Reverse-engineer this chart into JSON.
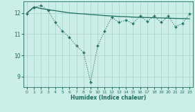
{
  "xlabel": "Humidex (Indice chaleur)",
  "bg_color": "#cceee8",
  "grid_color": "#aad4cc",
  "line_color": "#1a6b5a",
  "xlim": [
    -0.5,
    23.5
  ],
  "ylim": [
    8.5,
    12.55
  ],
  "yticks": [
    9,
    10,
    11,
    12
  ],
  "xticks": [
    0,
    1,
    2,
    3,
    4,
    5,
    6,
    7,
    8,
    9,
    10,
    11,
    12,
    13,
    14,
    15,
    16,
    17,
    18,
    19,
    20,
    21,
    22,
    23
  ],
  "series1_x": [
    0,
    1,
    2,
    3,
    4,
    5,
    6,
    7,
    8,
    9,
    10,
    11,
    12,
    13,
    14,
    15,
    16,
    17,
    18,
    19,
    20,
    21,
    22,
    23
  ],
  "series1_y": [
    11.95,
    12.25,
    12.35,
    12.1,
    11.55,
    11.15,
    10.85,
    10.45,
    10.15,
    8.75,
    10.45,
    11.15,
    11.8,
    11.55,
    11.65,
    11.5,
    11.85,
    11.6,
    11.85,
    11.55,
    11.85,
    11.35,
    11.5,
    11.95
  ],
  "series2_x": [
    0,
    1,
    2,
    3,
    4,
    5,
    6,
    7,
    8,
    9,
    10,
    11,
    12,
    13,
    14,
    15,
    16,
    17,
    18,
    19,
    20,
    21,
    22,
    23
  ],
  "series2_y": [
    12.0,
    12.28,
    12.2,
    12.15,
    12.1,
    12.05,
    12.0,
    11.97,
    11.95,
    11.92,
    11.9,
    11.87,
    11.85,
    11.83,
    11.82,
    11.8,
    11.79,
    11.78,
    11.77,
    11.76,
    11.75,
    11.74,
    11.73,
    11.72
  ]
}
